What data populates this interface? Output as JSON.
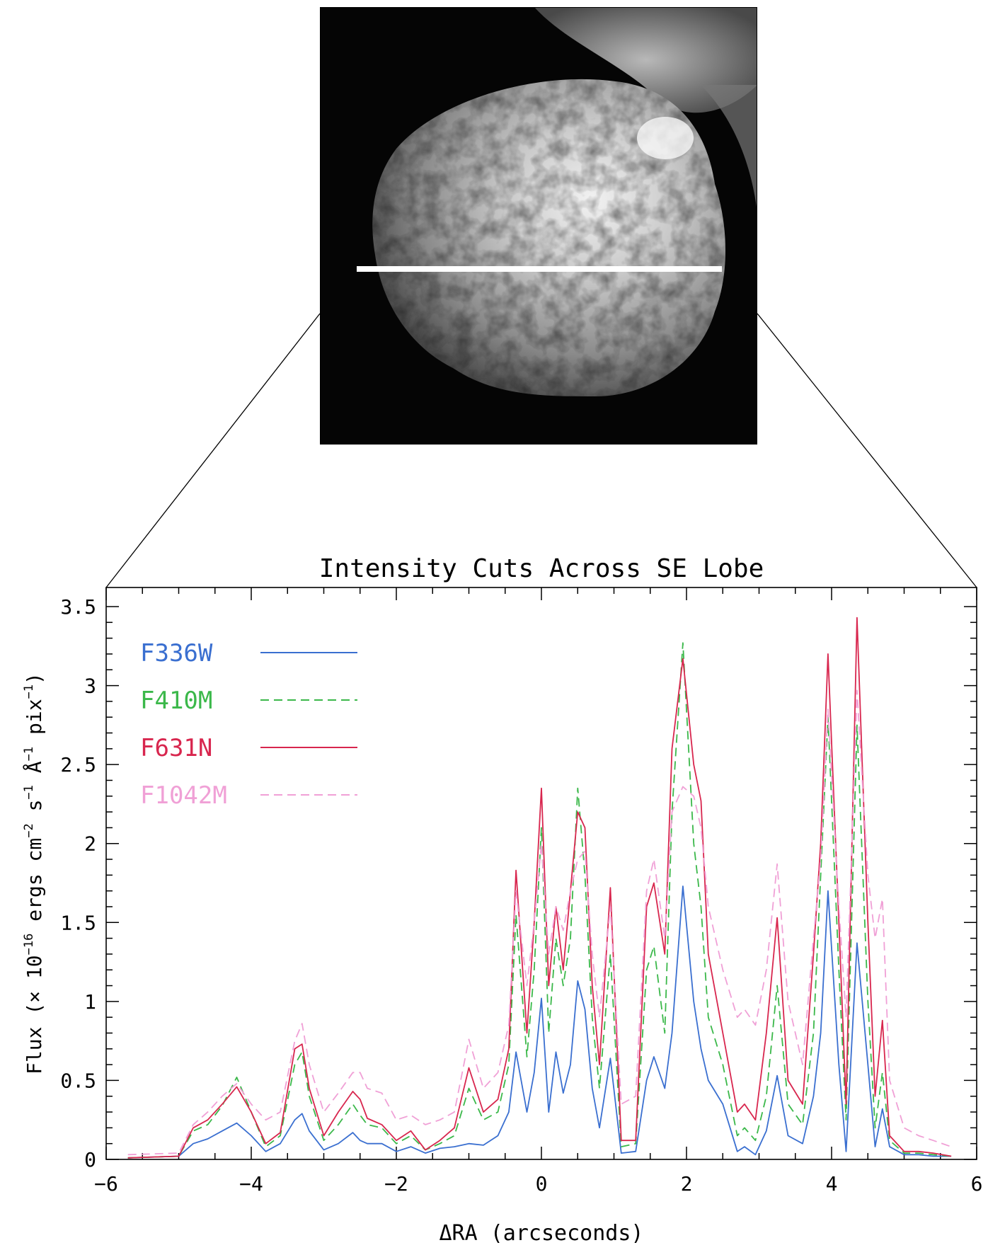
{
  "chart_data": {
    "type": "line",
    "title": "Intensity Cuts Across SE Lobe",
    "xlabel": "ΔRA (arcseconds)",
    "ylabel": {
      "prefix": "Flux (× 10",
      "exp1": "−16",
      "mid1": " ergs cm",
      "exp2": "−2",
      "mid2": " s",
      "exp3": "−1",
      "mid3": " Å",
      "exp4": "−1",
      "mid4": " pix",
      "exp5": "−1",
      "suffix": ")"
    },
    "xlim": [
      -6,
      6
    ],
    "ylim": [
      0,
      3.5
    ],
    "xticks": [
      "−6",
      "−4",
      "−2",
      "0",
      "2",
      "4",
      "6"
    ],
    "yticks": [
      "0",
      "0.5",
      "1",
      "1.5",
      "2",
      "2.5",
      "3",
      "3.5"
    ],
    "legend_position": "top-left",
    "series": [
      {
        "name": "F336W",
        "color": "#3a6fd0",
        "dash": "solid",
        "x": [
          -5.7,
          -5.0,
          -4.8,
          -4.6,
          -4.4,
          -4.2,
          -4.0,
          -3.8,
          -3.6,
          -3.4,
          -3.3,
          -3.2,
          -3.0,
          -2.8,
          -2.6,
          -2.5,
          -2.4,
          -2.2,
          -2.0,
          -1.8,
          -1.6,
          -1.4,
          -1.2,
          -1.0,
          -0.8,
          -0.6,
          -0.45,
          -0.35,
          -0.2,
          -0.1,
          0.0,
          0.1,
          0.2,
          0.3,
          0.4,
          0.5,
          0.6,
          0.7,
          0.8,
          0.95,
          1.1,
          1.3,
          1.45,
          1.55,
          1.7,
          1.8,
          1.95,
          2.1,
          2.2,
          2.3,
          2.5,
          2.7,
          2.8,
          2.95,
          3.1,
          3.25,
          3.4,
          3.6,
          3.75,
          3.85,
          3.95,
          4.1,
          4.2,
          4.35,
          4.5,
          4.6,
          4.7,
          4.8,
          5.0,
          5.2,
          5.4,
          5.65
        ],
        "values": [
          0.01,
          0.02,
          0.1,
          0.13,
          0.18,
          0.23,
          0.15,
          0.05,
          0.1,
          0.25,
          0.29,
          0.18,
          0.06,
          0.1,
          0.17,
          0.12,
          0.1,
          0.1,
          0.05,
          0.08,
          0.04,
          0.07,
          0.08,
          0.1,
          0.09,
          0.15,
          0.3,
          0.68,
          0.3,
          0.55,
          1.02,
          0.3,
          0.68,
          0.42,
          0.6,
          1.13,
          0.95,
          0.45,
          0.2,
          0.64,
          0.04,
          0.05,
          0.5,
          0.65,
          0.45,
          0.8,
          1.73,
          1.0,
          0.7,
          0.5,
          0.35,
          0.05,
          0.08,
          0.03,
          0.18,
          0.53,
          0.15,
          0.1,
          0.4,
          0.8,
          1.7,
          0.6,
          0.05,
          1.37,
          0.6,
          0.08,
          0.32,
          0.08,
          0.03,
          0.03,
          0.02,
          0.02
        ]
      },
      {
        "name": "F410M",
        "color": "#3bb84a",
        "dash": "dashed",
        "x": [
          -5.7,
          -5.0,
          -4.8,
          -4.6,
          -4.4,
          -4.2,
          -4.0,
          -3.8,
          -3.6,
          -3.4,
          -3.3,
          -3.2,
          -3.0,
          -2.8,
          -2.6,
          -2.5,
          -2.4,
          -2.2,
          -2.0,
          -1.8,
          -1.6,
          -1.4,
          -1.2,
          -1.0,
          -0.8,
          -0.6,
          -0.45,
          -0.35,
          -0.2,
          -0.1,
          0.0,
          0.1,
          0.2,
          0.3,
          0.4,
          0.5,
          0.6,
          0.7,
          0.8,
          0.95,
          1.1,
          1.3,
          1.45,
          1.55,
          1.7,
          1.8,
          1.95,
          2.1,
          2.2,
          2.3,
          2.5,
          2.7,
          2.8,
          2.95,
          3.1,
          3.25,
          3.4,
          3.6,
          3.75,
          3.85,
          3.95,
          4.1,
          4.2,
          4.35,
          4.5,
          4.6,
          4.7,
          4.8,
          5.0,
          5.2,
          5.4,
          5.65
        ],
        "values": [
          0.01,
          0.02,
          0.18,
          0.22,
          0.34,
          0.52,
          0.3,
          0.08,
          0.15,
          0.6,
          0.68,
          0.4,
          0.12,
          0.22,
          0.35,
          0.28,
          0.22,
          0.2,
          0.1,
          0.15,
          0.06,
          0.1,
          0.15,
          0.45,
          0.25,
          0.3,
          0.6,
          1.55,
          0.65,
          1.2,
          2.1,
          0.8,
          1.4,
          1.1,
          1.4,
          2.35,
          1.8,
          0.9,
          0.45,
          1.3,
          0.08,
          0.1,
          1.2,
          1.35,
          0.8,
          2.2,
          3.27,
          2.0,
          1.6,
          0.9,
          0.6,
          0.15,
          0.2,
          0.12,
          0.4,
          1.1,
          0.35,
          0.22,
          0.8,
          1.8,
          2.8,
          1.2,
          0.25,
          2.75,
          1.0,
          0.2,
          0.55,
          0.12,
          0.04,
          0.04,
          0.03,
          0.02
        ]
      },
      {
        "name": "F631N",
        "color": "#d8264e",
        "dash": "solid",
        "x": [
          -5.7,
          -5.0,
          -4.8,
          -4.6,
          -4.4,
          -4.2,
          -4.0,
          -3.8,
          -3.6,
          -3.4,
          -3.3,
          -3.2,
          -3.0,
          -2.8,
          -2.6,
          -2.5,
          -2.4,
          -2.2,
          -2.0,
          -1.8,
          -1.6,
          -1.4,
          -1.2,
          -1.0,
          -0.8,
          -0.6,
          -0.45,
          -0.35,
          -0.2,
          -0.1,
          0.0,
          0.1,
          0.2,
          0.3,
          0.4,
          0.5,
          0.6,
          0.7,
          0.8,
          0.95,
          1.1,
          1.3,
          1.45,
          1.55,
          1.7,
          1.8,
          1.95,
          2.1,
          2.2,
          2.3,
          2.5,
          2.7,
          2.8,
          2.95,
          3.1,
          3.25,
          3.4,
          3.6,
          3.75,
          3.85,
          3.95,
          4.1,
          4.2,
          4.35,
          4.5,
          4.6,
          4.7,
          4.8,
          5.0,
          5.2,
          5.4,
          5.65
        ],
        "values": [
          0.01,
          0.02,
          0.2,
          0.25,
          0.35,
          0.46,
          0.3,
          0.1,
          0.17,
          0.7,
          0.73,
          0.45,
          0.15,
          0.3,
          0.43,
          0.38,
          0.26,
          0.22,
          0.12,
          0.18,
          0.06,
          0.12,
          0.2,
          0.58,
          0.3,
          0.38,
          0.7,
          1.83,
          0.8,
          1.5,
          2.35,
          1.1,
          1.6,
          1.2,
          1.7,
          2.2,
          2.1,
          1.1,
          0.6,
          1.72,
          0.12,
          0.12,
          1.6,
          1.75,
          1.3,
          2.6,
          3.17,
          2.5,
          2.27,
          1.3,
          0.8,
          0.3,
          0.35,
          0.25,
          0.8,
          1.53,
          0.5,
          0.35,
          1.3,
          2.0,
          3.2,
          1.5,
          0.35,
          3.43,
          1.5,
          0.4,
          0.88,
          0.15,
          0.05,
          0.05,
          0.04,
          0.02
        ]
      },
      {
        "name": "F1042M",
        "color": "#f0a0d6",
        "dash": "dashed",
        "x": [
          -5.7,
          -5.0,
          -4.8,
          -4.6,
          -4.4,
          -4.2,
          -4.0,
          -3.8,
          -3.6,
          -3.4,
          -3.3,
          -3.2,
          -3.0,
          -2.8,
          -2.6,
          -2.5,
          -2.4,
          -2.2,
          -2.0,
          -1.8,
          -1.6,
          -1.4,
          -1.2,
          -1.0,
          -0.8,
          -0.6,
          -0.45,
          -0.35,
          -0.2,
          -0.1,
          0.0,
          0.1,
          0.2,
          0.3,
          0.4,
          0.5,
          0.6,
          0.7,
          0.8,
          0.95,
          1.1,
          1.3,
          1.45,
          1.55,
          1.7,
          1.8,
          1.95,
          2.1,
          2.2,
          2.3,
          2.5,
          2.7,
          2.8,
          2.95,
          3.1,
          3.25,
          3.4,
          3.6,
          3.75,
          3.85,
          3.95,
          4.1,
          4.2,
          4.35,
          4.5,
          4.6,
          4.7,
          4.8,
          5.0,
          5.2,
          5.4,
          5.65
        ],
        "values": [
          0.03,
          0.04,
          0.22,
          0.3,
          0.4,
          0.48,
          0.35,
          0.25,
          0.3,
          0.75,
          0.86,
          0.6,
          0.3,
          0.42,
          0.55,
          0.55,
          0.45,
          0.42,
          0.25,
          0.28,
          0.22,
          0.25,
          0.3,
          0.76,
          0.45,
          0.55,
          0.85,
          1.7,
          1.1,
          1.5,
          2.0,
          1.3,
          1.6,
          1.45,
          1.7,
          1.9,
          1.95,
          1.3,
          0.9,
          1.6,
          0.35,
          0.4,
          1.7,
          1.9,
          1.4,
          2.2,
          2.36,
          2.3,
          2.1,
          1.6,
          1.2,
          0.9,
          0.95,
          0.85,
          1.2,
          1.87,
          1.0,
          0.6,
          1.4,
          1.9,
          2.85,
          1.6,
          0.9,
          2.97,
          1.8,
          1.4,
          1.65,
          0.5,
          0.2,
          0.15,
          0.12,
          0.08
        ]
      }
    ]
  }
}
